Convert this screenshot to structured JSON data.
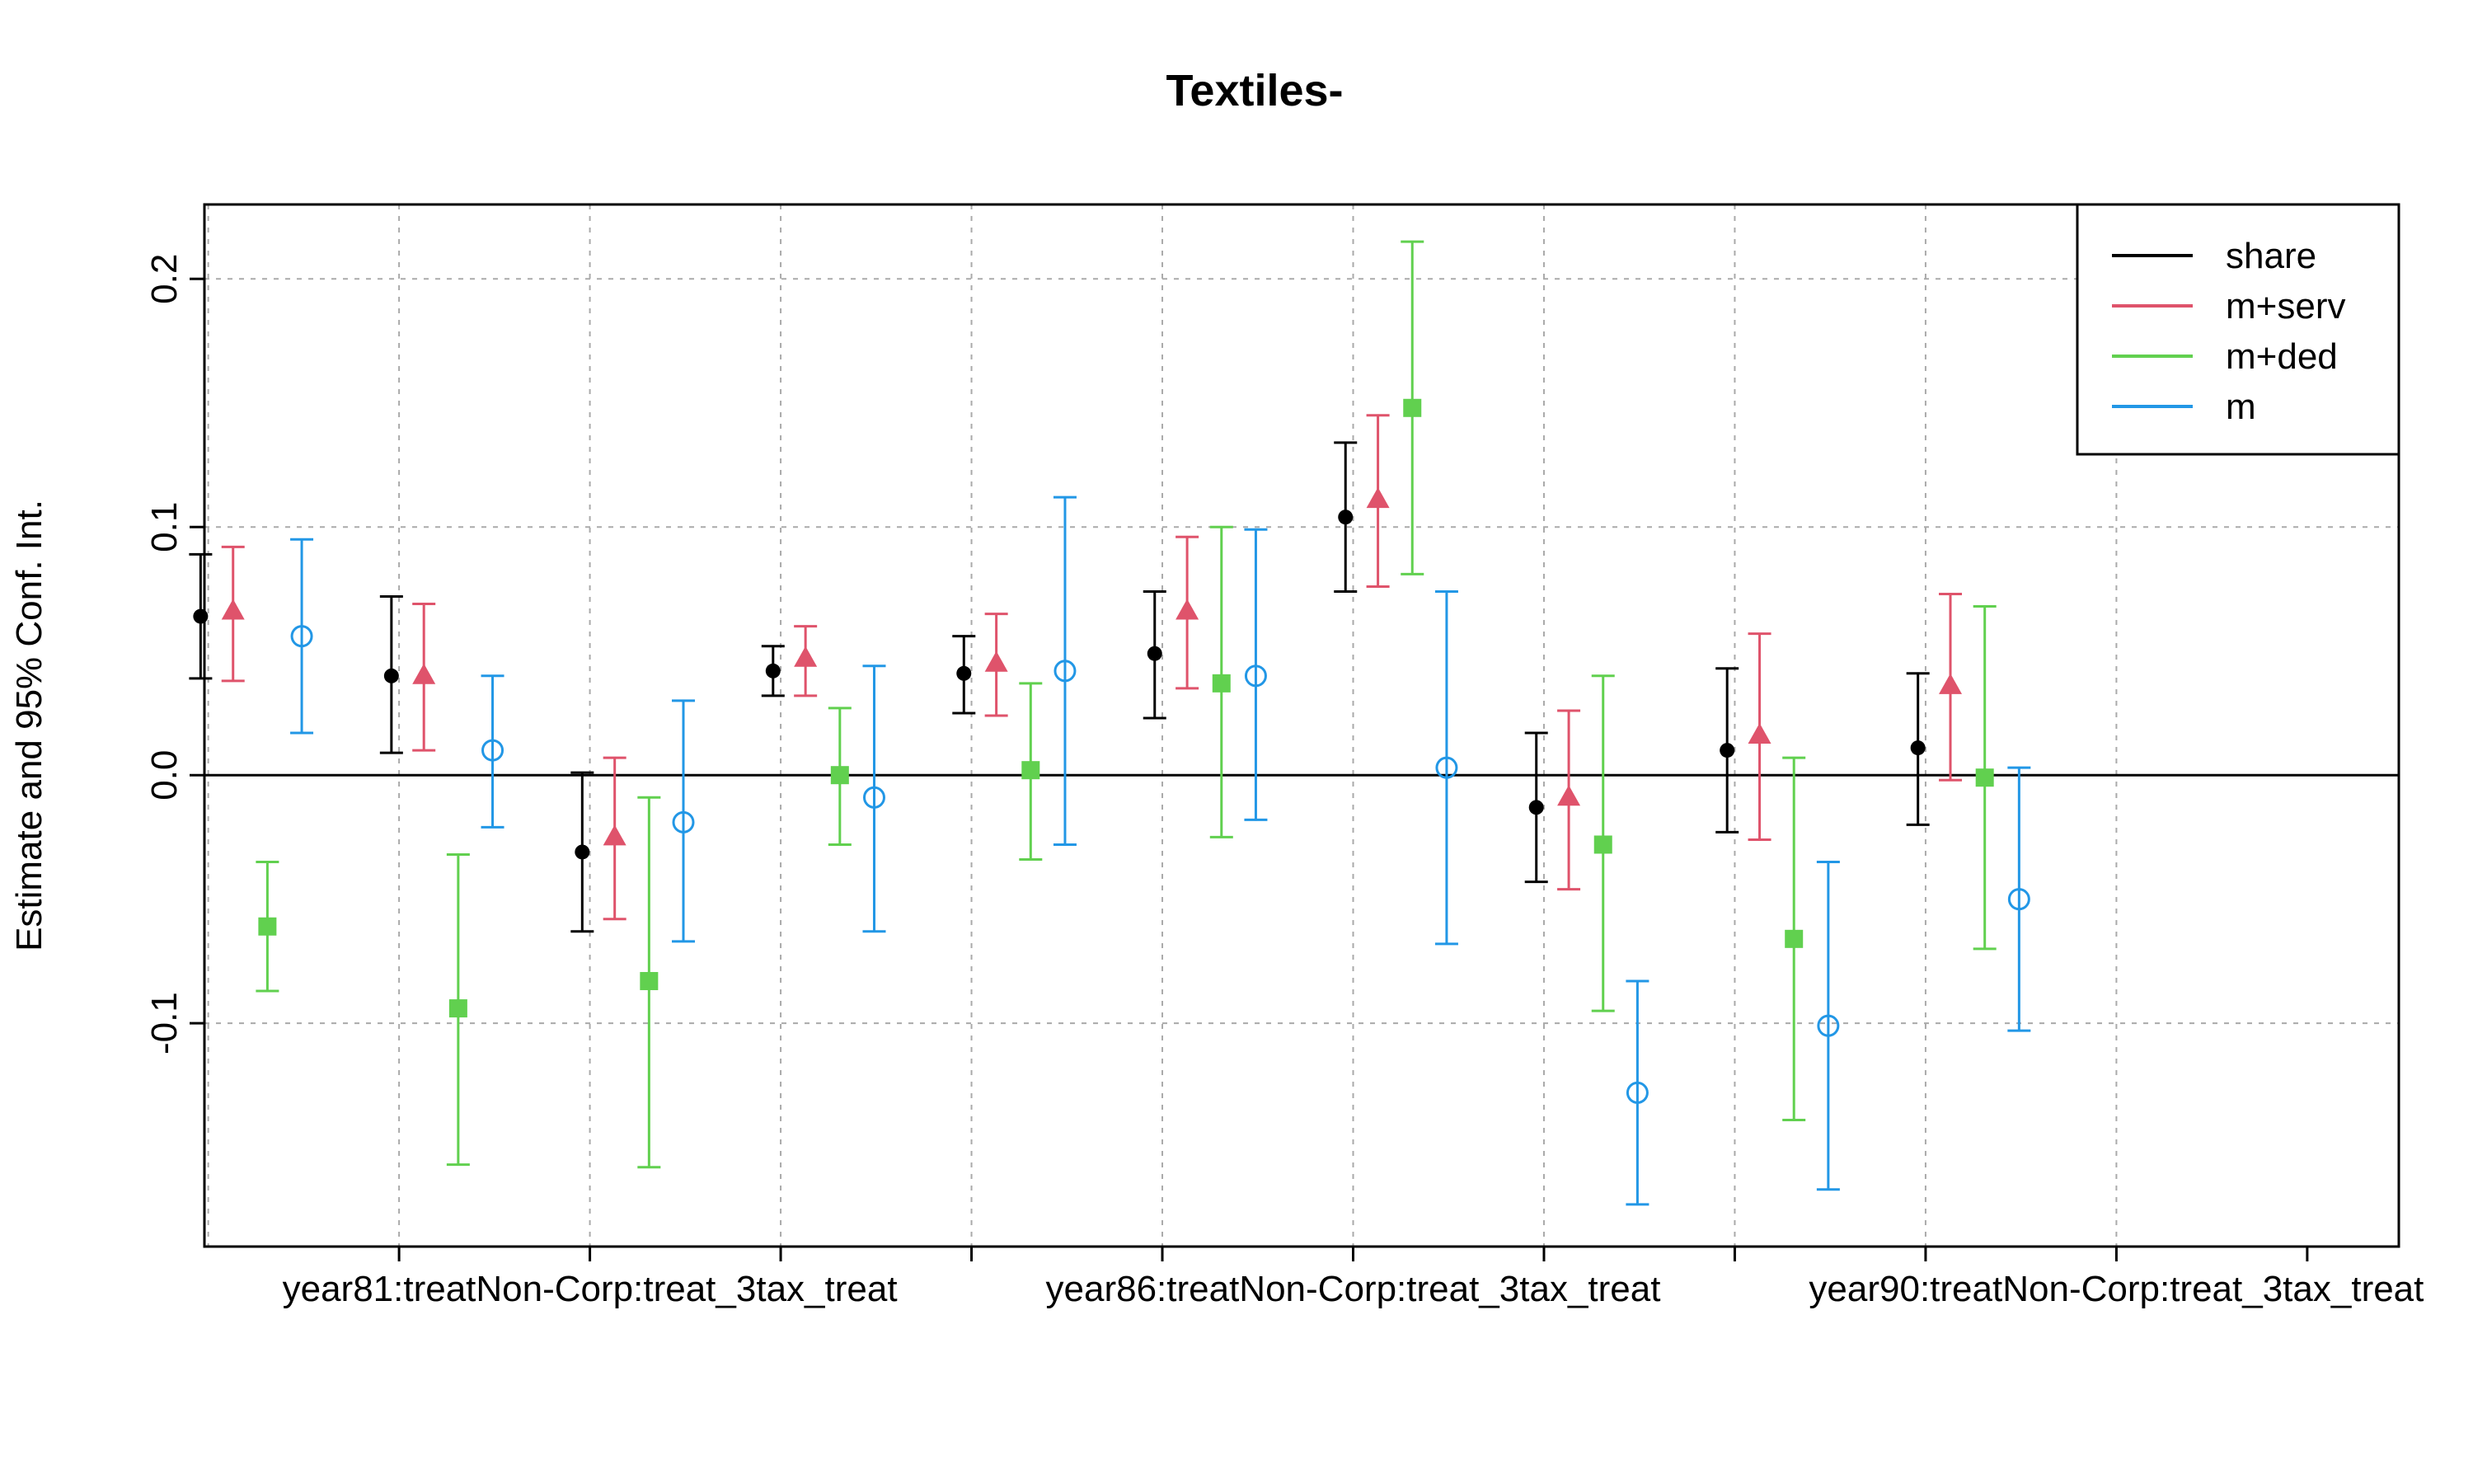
{
  "chart_data": {
    "type": "scatter",
    "title": "Textiles-",
    "xlabel": "",
    "ylabel": "Estimate and 95% Conf. Int.",
    "ylim": [
      -0.19,
      0.23
    ],
    "yticks": [
      -0.1,
      0.0,
      0.1,
      0.2
    ],
    "ytick_labels": [
      "-0.1",
      "0.0",
      "0.1",
      "0.2"
    ],
    "x_positions": [
      1,
      2,
      3,
      4,
      5,
      6,
      7,
      8,
      9,
      10
    ],
    "xtick_labels": [
      {
        "x": 2,
        "label": "year81:treatNon-Corp:treat_3tax_treat"
      },
      {
        "x": 6,
        "label": "year86:treatNon-Corp:treat_3tax_treat"
      },
      {
        "x": 10,
        "label": "year90:treatNon-Corp:treat_3tax_treat"
      }
    ],
    "grid": true,
    "zero_line": true,
    "legend": {
      "position": "top-right"
    },
    "series": [
      {
        "name": "share",
        "color": "#000000",
        "marker": "dot",
        "estimate": [
          0.064,
          0.04,
          -0.031,
          0.042,
          0.041,
          0.049,
          0.104,
          -0.013,
          0.01,
          0.011
        ],
        "lower": [
          0.039,
          0.009,
          -0.063,
          0.032,
          0.025,
          0.023,
          0.074,
          -0.043,
          -0.023,
          -0.02
        ],
        "upper": [
          0.089,
          0.072,
          0.001,
          0.052,
          0.056,
          0.074,
          0.134,
          0.017,
          0.043,
          0.041
        ]
      },
      {
        "name": "m+serv",
        "color": "#DF536B",
        "marker": "triangle",
        "estimate": [
          0.066,
          0.04,
          -0.025,
          0.047,
          0.045,
          0.066,
          0.111,
          -0.009,
          0.016,
          0.036
        ],
        "lower": [
          0.038,
          0.01,
          -0.058,
          0.032,
          0.024,
          0.035,
          0.076,
          -0.046,
          -0.026,
          -0.002
        ],
        "upper": [
          0.092,
          0.069,
          0.007,
          0.06,
          0.065,
          0.096,
          0.145,
          0.026,
          0.057,
          0.073
        ]
      },
      {
        "name": "m+ded",
        "color": "#61D04F",
        "marker": "square",
        "estimate": [
          -0.061,
          -0.094,
          -0.083,
          0.0,
          0.002,
          0.037,
          0.148,
          -0.028,
          -0.066,
          -0.001
        ],
        "lower": [
          -0.087,
          -0.157,
          -0.158,
          -0.028,
          -0.034,
          -0.025,
          0.081,
          -0.095,
          -0.139,
          -0.07
        ],
        "upper": [
          -0.035,
          -0.032,
          -0.009,
          0.027,
          0.037,
          0.1,
          0.215,
          0.04,
          0.007,
          0.068
        ]
      },
      {
        "name": "m",
        "color": "#2297E6",
        "marker": "circle",
        "estimate": [
          0.056,
          0.01,
          -0.019,
          -0.009,
          0.042,
          0.04,
          0.003,
          -0.128,
          -0.101,
          -0.05
        ],
        "lower": [
          0.017,
          -0.021,
          -0.067,
          -0.063,
          -0.028,
          -0.018,
          -0.068,
          -0.173,
          -0.167,
          -0.103
        ],
        "upper": [
          0.095,
          0.04,
          0.03,
          0.044,
          0.112,
          0.099,
          0.074,
          -0.083,
          -0.035,
          0.003
        ]
      }
    ]
  }
}
